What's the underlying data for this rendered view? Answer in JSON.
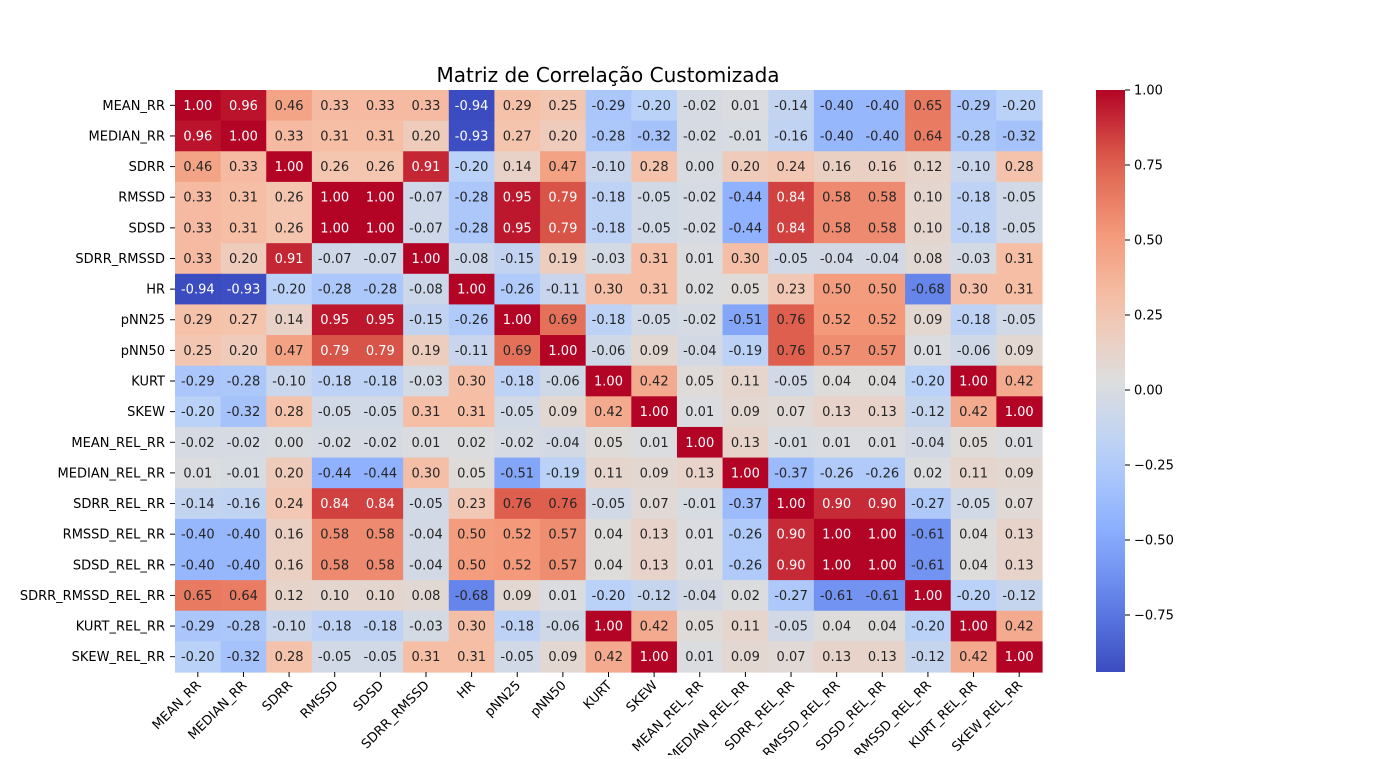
{
  "chart_data": {
    "type": "heatmap",
    "title": "Matriz de Correlação Customizada",
    "labels": [
      "MEAN_RR",
      "MEDIAN_RR",
      "SDRR",
      "RMSSD",
      "SDSD",
      "SDRR_RMSSD",
      "HR",
      "pNN25",
      "pNN50",
      "KURT",
      "SKEW",
      "MEAN_REL_RR",
      "MEDIAN_REL_RR",
      "SDRR_REL_RR",
      "RMSSD_REL_RR",
      "SDSD_REL_RR",
      "SDRR_RMSSD_REL_RR",
      "KURT_REL_RR",
      "SKEW_REL_RR"
    ],
    "values": [
      [
        1.0,
        0.96,
        0.46,
        0.33,
        0.33,
        0.33,
        -0.94,
        0.29,
        0.25,
        -0.29,
        -0.2,
        -0.02,
        0.01,
        -0.14,
        -0.4,
        -0.4,
        0.65,
        -0.29,
        -0.2
      ],
      [
        0.96,
        1.0,
        0.33,
        0.31,
        0.31,
        0.2,
        -0.93,
        0.27,
        0.2,
        -0.28,
        -0.32,
        -0.02,
        -0.01,
        -0.16,
        -0.4,
        -0.4,
        0.64,
        -0.28,
        -0.32
      ],
      [
        0.46,
        0.33,
        1.0,
        0.26,
        0.26,
        0.91,
        -0.2,
        0.14,
        0.47,
        -0.1,
        0.28,
        0.0,
        0.2,
        0.24,
        0.16,
        0.16,
        0.12,
        -0.1,
        0.28
      ],
      [
        0.33,
        0.31,
        0.26,
        1.0,
        1.0,
        -0.07,
        -0.28,
        0.95,
        0.79,
        -0.18,
        -0.05,
        -0.02,
        -0.44,
        0.84,
        0.58,
        0.58,
        0.1,
        -0.18,
        -0.05
      ],
      [
        0.33,
        0.31,
        0.26,
        1.0,
        1.0,
        -0.07,
        -0.28,
        0.95,
        0.79,
        -0.18,
        -0.05,
        -0.02,
        -0.44,
        0.84,
        0.58,
        0.58,
        0.1,
        -0.18,
        -0.05
      ],
      [
        0.33,
        0.2,
        0.91,
        -0.07,
        -0.07,
        1.0,
        -0.08,
        -0.15,
        0.19,
        -0.03,
        0.31,
        0.01,
        0.3,
        -0.05,
        -0.04,
        -0.04,
        0.08,
        -0.03,
        0.31
      ],
      [
        -0.94,
        -0.93,
        -0.2,
        -0.28,
        -0.28,
        -0.08,
        1.0,
        -0.26,
        -0.11,
        0.3,
        0.31,
        0.02,
        0.05,
        0.23,
        0.5,
        0.5,
        -0.68,
        0.3,
        0.31
      ],
      [
        0.29,
        0.27,
        0.14,
        0.95,
        0.95,
        -0.15,
        -0.26,
        1.0,
        0.69,
        -0.18,
        -0.05,
        -0.02,
        -0.51,
        0.76,
        0.52,
        0.52,
        0.09,
        -0.18,
        -0.05
      ],
      [
        0.25,
        0.2,
        0.47,
        0.79,
        0.79,
        0.19,
        -0.11,
        0.69,
        1.0,
        -0.06,
        0.09,
        -0.04,
        -0.19,
        0.76,
        0.57,
        0.57,
        0.01,
        -0.06,
        0.09
      ],
      [
        -0.29,
        -0.28,
        -0.1,
        -0.18,
        -0.18,
        -0.03,
        0.3,
        -0.18,
        -0.06,
        1.0,
        0.42,
        0.05,
        0.11,
        -0.05,
        0.04,
        0.04,
        -0.2,
        1.0,
        0.42
      ],
      [
        -0.2,
        -0.32,
        0.28,
        -0.05,
        -0.05,
        0.31,
        0.31,
        -0.05,
        0.09,
        0.42,
        1.0,
        0.01,
        0.09,
        0.07,
        0.13,
        0.13,
        -0.12,
        0.42,
        1.0
      ],
      [
        -0.02,
        -0.02,
        0.0,
        -0.02,
        -0.02,
        0.01,
        0.02,
        -0.02,
        -0.04,
        0.05,
        0.01,
        1.0,
        0.13,
        -0.01,
        0.01,
        0.01,
        -0.04,
        0.05,
        0.01
      ],
      [
        0.01,
        -0.01,
        0.2,
        -0.44,
        -0.44,
        0.3,
        0.05,
        -0.51,
        -0.19,
        0.11,
        0.09,
        0.13,
        1.0,
        -0.37,
        -0.26,
        -0.26,
        0.02,
        0.11,
        0.09
      ],
      [
        -0.14,
        -0.16,
        0.24,
        0.84,
        0.84,
        -0.05,
        0.23,
        0.76,
        0.76,
        -0.05,
        0.07,
        -0.01,
        -0.37,
        1.0,
        0.9,
        0.9,
        -0.27,
        -0.05,
        0.07
      ],
      [
        -0.4,
        -0.4,
        0.16,
        0.58,
        0.58,
        -0.04,
        0.5,
        0.52,
        0.57,
        0.04,
        0.13,
        0.01,
        -0.26,
        0.9,
        1.0,
        1.0,
        -0.61,
        0.04,
        0.13
      ],
      [
        -0.4,
        -0.4,
        0.16,
        0.58,
        0.58,
        -0.04,
        0.5,
        0.52,
        0.57,
        0.04,
        0.13,
        0.01,
        -0.26,
        0.9,
        1.0,
        1.0,
        -0.61,
        0.04,
        0.13
      ],
      [
        0.65,
        0.64,
        0.12,
        0.1,
        0.1,
        0.08,
        -0.68,
        0.09,
        0.01,
        -0.2,
        -0.12,
        -0.04,
        0.02,
        -0.27,
        -0.61,
        -0.61,
        1.0,
        -0.2,
        -0.12
      ],
      [
        -0.29,
        -0.28,
        -0.1,
        -0.18,
        -0.18,
        -0.03,
        0.3,
        -0.18,
        -0.06,
        1.0,
        0.42,
        0.05,
        0.11,
        -0.05,
        0.04,
        0.04,
        -0.2,
        1.0,
        0.42
      ],
      [
        -0.2,
        -0.32,
        0.28,
        -0.05,
        -0.05,
        0.31,
        0.31,
        -0.05,
        0.09,
        0.42,
        1.0,
        0.01,
        0.09,
        0.07,
        0.13,
        0.13,
        -0.12,
        0.42,
        1.0
      ]
    ],
    "colormap": "coolwarm",
    "vmin": -0.94,
    "vmax": 1.0,
    "colorbar_ticks": [
      1.0,
      0.75,
      0.5,
      0.25,
      0.0,
      -0.25,
      -0.5,
      -0.75
    ],
    "colorbar_tick_labels": [
      "1.00",
      "0.75",
      "0.50",
      "0.25",
      "0.00",
      "−0.25",
      "−0.50",
      "−0.75"
    ],
    "annotation_format": "0.00",
    "grid": false,
    "legend": "colorbar right"
  }
}
